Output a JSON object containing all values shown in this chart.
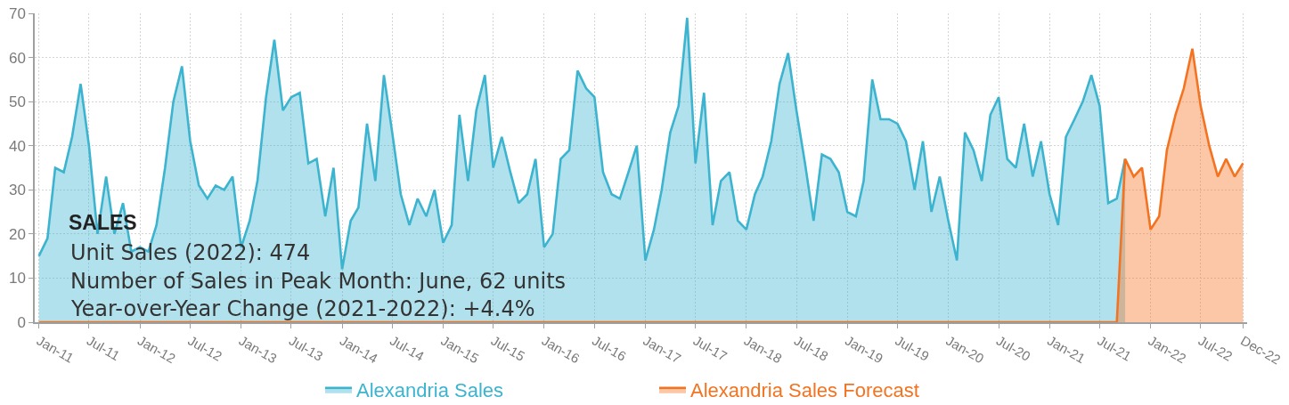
{
  "chart_data": {
    "type": "area",
    "title": "SALES",
    "annotations": [
      "Unit Sales (2022): 474",
      "Number of Sales in Peak Month: June, 62 units",
      "Year-over-Year Change (2021-2022): +4.4%"
    ],
    "x": [
      "2011-01",
      "2011-02",
      "2011-03",
      "2011-04",
      "2011-05",
      "2011-06",
      "2011-07",
      "2011-08",
      "2011-09",
      "2011-10",
      "2011-11",
      "2011-12",
      "2012-01",
      "2012-02",
      "2012-03",
      "2012-04",
      "2012-05",
      "2012-06",
      "2012-07",
      "2012-08",
      "2012-09",
      "2012-10",
      "2012-11",
      "2012-12",
      "2013-01",
      "2013-02",
      "2013-03",
      "2013-04",
      "2013-05",
      "2013-06",
      "2013-07",
      "2013-08",
      "2013-09",
      "2013-10",
      "2013-11",
      "2013-12",
      "2014-01",
      "2014-02",
      "2014-03",
      "2014-04",
      "2014-05",
      "2014-06",
      "2014-07",
      "2014-08",
      "2014-09",
      "2014-10",
      "2014-11",
      "2014-12",
      "2015-01",
      "2015-02",
      "2015-03",
      "2015-04",
      "2015-05",
      "2015-06",
      "2015-07",
      "2015-08",
      "2015-09",
      "2015-10",
      "2015-11",
      "2015-12",
      "2016-01",
      "2016-02",
      "2016-03",
      "2016-04",
      "2016-05",
      "2016-06",
      "2016-07",
      "2016-08",
      "2016-09",
      "2016-10",
      "2016-11",
      "2016-12",
      "2017-01",
      "2017-02",
      "2017-03",
      "2017-04",
      "2017-05",
      "2017-06",
      "2017-07",
      "2017-08",
      "2017-09",
      "2017-10",
      "2017-11",
      "2017-12",
      "2018-01",
      "2018-02",
      "2018-03",
      "2018-04",
      "2018-05",
      "2018-06",
      "2018-07",
      "2018-08",
      "2018-09",
      "2018-10",
      "2018-11",
      "2018-12",
      "2019-01",
      "2019-02",
      "2019-03",
      "2019-04",
      "2019-05",
      "2019-06",
      "2019-07",
      "2019-08",
      "2019-09",
      "2019-10",
      "2019-11",
      "2019-12",
      "2020-01",
      "2020-02",
      "2020-03",
      "2020-04",
      "2020-05",
      "2020-06",
      "2020-07",
      "2020-08",
      "2020-09",
      "2020-10",
      "2020-11",
      "2020-12",
      "2021-01",
      "2021-02",
      "2021-03",
      "2021-04",
      "2021-05",
      "2021-06",
      "2021-07",
      "2021-08",
      "2021-09",
      "2021-10",
      "2021-11",
      "2021-12",
      "2022-01",
      "2022-02",
      "2022-03",
      "2022-04",
      "2022-05",
      "2022-06",
      "2022-07",
      "2022-08",
      "2022-09",
      "2022-10",
      "2022-11",
      "2022-12"
    ],
    "series": [
      {
        "name": "Alexandria Sales",
        "color": "#3cb4cf",
        "values": [
          15,
          19,
          35,
          34,
          42,
          54,
          40,
          20,
          33,
          20,
          27,
          16,
          17,
          16,
          22,
          35,
          50,
          58,
          41,
          31,
          28,
          31,
          30,
          33,
          17,
          23,
          32,
          51,
          64,
          48,
          51,
          52,
          36,
          37,
          24,
          35,
          12,
          23,
          26,
          45,
          32,
          56,
          43,
          29,
          22,
          28,
          24,
          30,
          18,
          22,
          47,
          32,
          48,
          56,
          35,
          42,
          34,
          27,
          29,
          37,
          17,
          20,
          37,
          39,
          57,
          53,
          51,
          34,
          29,
          28,
          34,
          40,
          14,
          21,
          30,
          43,
          49,
          69,
          36,
          52,
          22,
          32,
          34,
          23,
          21,
          29,
          33,
          41,
          54,
          61,
          48,
          36,
          23,
          38,
          37,
          34,
          25,
          24,
          32,
          55,
          46,
          46,
          45,
          41,
          30,
          41,
          25,
          33,
          23,
          14,
          43,
          39,
          32,
          47,
          51,
          37,
          35,
          45,
          33,
          41,
          29,
          22,
          42,
          46,
          50,
          56,
          49,
          27,
          28,
          37,
          null,
          null,
          null,
          null,
          null,
          null,
          null,
          null,
          null,
          null,
          null,
          null,
          null,
          null
        ]
      },
      {
        "name": "Alexandria Sales Forecast",
        "color": "#f47321",
        "values": [
          0,
          0,
          0,
          0,
          0,
          0,
          0,
          0,
          0,
          0,
          0,
          0,
          0,
          0,
          0,
          0,
          0,
          0,
          0,
          0,
          0,
          0,
          0,
          0,
          0,
          0,
          0,
          0,
          0,
          0,
          0,
          0,
          0,
          0,
          0,
          0,
          0,
          0,
          0,
          0,
          0,
          0,
          0,
          0,
          0,
          0,
          0,
          0,
          0,
          0,
          0,
          0,
          0,
          0,
          0,
          0,
          0,
          0,
          0,
          0,
          0,
          0,
          0,
          0,
          0,
          0,
          0,
          0,
          0,
          0,
          0,
          0,
          0,
          0,
          0,
          0,
          0,
          0,
          0,
          0,
          0,
          0,
          0,
          0,
          0,
          0,
          0,
          0,
          0,
          0,
          0,
          0,
          0,
          0,
          0,
          0,
          0,
          0,
          0,
          0,
          0,
          0,
          0,
          0,
          0,
          0,
          0,
          0,
          0,
          0,
          0,
          0,
          0,
          0,
          0,
          0,
          0,
          0,
          0,
          0,
          0,
          0,
          0,
          0,
          0,
          0,
          0,
          0,
          0,
          37,
          33,
          35,
          21,
          24,
          39,
          47,
          53,
          62,
          49,
          40,
          33,
          37,
          33,
          36
        ]
      }
    ],
    "xlim": [
      "2010-12-17",
      "2022-12-16"
    ],
    "xticks": [
      {
        "value": "2011-01",
        "label": "Jan-11"
      },
      {
        "value": "2011-07",
        "label": "Jul-11"
      },
      {
        "value": "2012-01",
        "label": "Jan-12"
      },
      {
        "value": "2012-07",
        "label": "Jul-12"
      },
      {
        "value": "2013-01",
        "label": "Jan-13"
      },
      {
        "value": "2013-07",
        "label": "Jul-13"
      },
      {
        "value": "2014-01",
        "label": "Jan-14"
      },
      {
        "value": "2014-07",
        "label": "Jul-14"
      },
      {
        "value": "2015-01",
        "label": "Jan-15"
      },
      {
        "value": "2015-07",
        "label": "Jul-15"
      },
      {
        "value": "2016-01",
        "label": "Jan-16"
      },
      {
        "value": "2016-07",
        "label": "Jul-16"
      },
      {
        "value": "2017-01",
        "label": "Jan-17"
      },
      {
        "value": "2017-07",
        "label": "Jul-17"
      },
      {
        "value": "2018-01",
        "label": "Jan-18"
      },
      {
        "value": "2018-07",
        "label": "Jul-18"
      },
      {
        "value": "2019-01",
        "label": "Jan-19"
      },
      {
        "value": "2019-07",
        "label": "Jul-19"
      },
      {
        "value": "2020-01",
        "label": "Jan-20"
      },
      {
        "value": "2020-07",
        "label": "Jul-20"
      },
      {
        "value": "2021-01",
        "label": "Jan-21"
      },
      {
        "value": "2021-07",
        "label": "Jul-21"
      },
      {
        "value": "2022-01",
        "label": "Jan-22"
      },
      {
        "value": "2022-07",
        "label": "Jul-22"
      },
      {
        "value": "2022-12",
        "label": "Dec-22"
      }
    ],
    "ylim": [
      0,
      70
    ],
    "yticks": [
      0,
      10,
      20,
      30,
      40,
      50,
      60,
      70
    ],
    "grid": true,
    "legend": "bottom"
  }
}
